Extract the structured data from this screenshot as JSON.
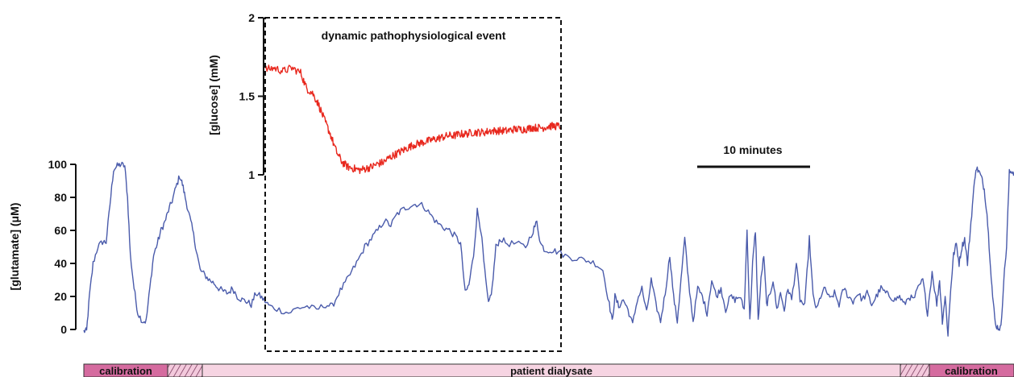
{
  "colors": {
    "glutamate": "#4a5bab",
    "glucose": "#e8281e",
    "calibration_band": "#d56b9f",
    "dialysate_band": "#f6d4e2",
    "hatch_band": "#c9629b",
    "box": "#111111"
  },
  "annotations": {
    "event_label": "dynamic pathophysiological event",
    "scale_bar_label": "10 minutes"
  },
  "band": {
    "calibration_left": "calibration",
    "dialysate": "patient dialysate",
    "calibration_right": "calibration"
  },
  "chart_data": [
    {
      "type": "line",
      "name": "glutamate",
      "ylabel": "[glutamate] (μM)",
      "ylim": [
        0,
        100
      ],
      "yticks": [
        0,
        20,
        40,
        60,
        80,
        100
      ],
      "xlim": [
        0,
        100
      ],
      "x_unit": "relative time",
      "points": [
        [
          0,
          -1
        ],
        [
          0.3,
          -1
        ],
        [
          0.6,
          20
        ],
        [
          1,
          40
        ],
        [
          1.5,
          50
        ],
        [
          2,
          53
        ],
        [
          2.4,
          53
        ],
        [
          2.8,
          75
        ],
        [
          3.2,
          97
        ],
        [
          3.6,
          99
        ],
        [
          4,
          100
        ],
        [
          4.4,
          99
        ],
        [
          4.7,
          80
        ],
        [
          5,
          45
        ],
        [
          5.4,
          25
        ],
        [
          5.8,
          10
        ],
        [
          6.3,
          5
        ],
        [
          6.7,
          5
        ],
        [
          7.1,
          25
        ],
        [
          7.5,
          45
        ],
        [
          7.9,
          52
        ],
        [
          8.3,
          60
        ],
        [
          8.7,
          65
        ],
        [
          9.1,
          72
        ],
        [
          9.5,
          78
        ],
        [
          9.9,
          86
        ],
        [
          10.3,
          93
        ],
        [
          10.6,
          88
        ],
        [
          10.9,
          80
        ],
        [
          11.3,
          70
        ],
        [
          11.7,
          60
        ],
        [
          12.1,
          48
        ],
        [
          12.5,
          36
        ],
        [
          13,
          33
        ],
        [
          13.5,
          30
        ],
        [
          14,
          28
        ],
        [
          14.5,
          25
        ],
        [
          15,
          23
        ],
        [
          15.5,
          22
        ],
        [
          16,
          25
        ],
        [
          16.5,
          20
        ],
        [
          17,
          18
        ],
        [
          17.5,
          17
        ],
        [
          18,
          15
        ],
        [
          18.5,
          22
        ],
        [
          19,
          20
        ],
        [
          19.5,
          17
        ],
        [
          20,
          14
        ],
        [
          21,
          12
        ],
        [
          22,
          10
        ],
        [
          23,
          13
        ],
        [
          24,
          14
        ],
        [
          25,
          12
        ],
        [
          26,
          15
        ],
        [
          26.7,
          14
        ],
        [
          27.4,
          22
        ],
        [
          28.1,
          28
        ],
        [
          28.8,
          35
        ],
        [
          29.5,
          42
        ],
        [
          30.2,
          50
        ],
        [
          30.9,
          55
        ],
        [
          31.6,
          60
        ],
        [
          32.3,
          66
        ],
        [
          33,
          63
        ],
        [
          33.7,
          70
        ],
        [
          34.4,
          73
        ],
        [
          35.1,
          75
        ],
        [
          35.8,
          76
        ],
        [
          36.5,
          75
        ],
        [
          37.2,
          70
        ],
        [
          37.9,
          65
        ],
        [
          38.6,
          62
        ],
        [
          39.3,
          60
        ],
        [
          40,
          56
        ],
        [
          40.5,
          52
        ],
        [
          41,
          22
        ],
        [
          41.4,
          27
        ],
        [
          41.9,
          45
        ],
        [
          42.3,
          72
        ],
        [
          42.7,
          60
        ],
        [
          43.1,
          35
        ],
        [
          43.5,
          15
        ],
        [
          43.9,
          25
        ],
        [
          44.3,
          50
        ],
        [
          44.8,
          55
        ],
        [
          45.5,
          52
        ],
        [
          46.5,
          52
        ],
        [
          47.5,
          50
        ],
        [
          48.3,
          60
        ],
        [
          48.7,
          65
        ],
        [
          49.1,
          52
        ],
        [
          49.6,
          48
        ],
        [
          50.3,
          48
        ],
        [
          51,
          47
        ],
        [
          52,
          44
        ],
        [
          53,
          43
        ],
        [
          54,
          42
        ],
        [
          55,
          40
        ],
        [
          55.8,
          36
        ],
        [
          56.5,
          15
        ],
        [
          56.8,
          5
        ],
        [
          57.1,
          20
        ],
        [
          57.5,
          14
        ],
        [
          58,
          18
        ],
        [
          58.5,
          12
        ],
        [
          59,
          3
        ],
        [
          59.5,
          18
        ],
        [
          60,
          25
        ],
        [
          60.5,
          10
        ],
        [
          61,
          30
        ],
        [
          61.5,
          15
        ],
        [
          62,
          5
        ],
        [
          62.5,
          22
        ],
        [
          63,
          45
        ],
        [
          63.4,
          20
        ],
        [
          63.8,
          5
        ],
        [
          64.2,
          30
        ],
        [
          64.6,
          55
        ],
        [
          65,
          30
        ],
        [
          65.5,
          5
        ],
        [
          66,
          25
        ],
        [
          66.5,
          20
        ],
        [
          67,
          10
        ],
        [
          67.5,
          30
        ],
        [
          68,
          20
        ],
        [
          68.5,
          25
        ],
        [
          69,
          12
        ],
        [
          69.5,
          20
        ],
        [
          70,
          18
        ],
        [
          70.5,
          20
        ],
        [
          71,
          12
        ],
        [
          71.3,
          60
        ],
        [
          71.6,
          5
        ],
        [
          71.9,
          40
        ],
        [
          72.2,
          60
        ],
        [
          72.5,
          5
        ],
        [
          72.8,
          30
        ],
        [
          73.1,
          45
        ],
        [
          73.4,
          15
        ],
        [
          73.7,
          20
        ],
        [
          74.1,
          30
        ],
        [
          74.5,
          12
        ],
        [
          74.9,
          22
        ],
        [
          75.3,
          12
        ],
        [
          75.7,
          25
        ],
        [
          76.1,
          18
        ],
        [
          76.6,
          40
        ],
        [
          77,
          18
        ],
        [
          77.5,
          14
        ],
        [
          78,
          55
        ],
        [
          78.4,
          20
        ],
        [
          78.8,
          12
        ],
        [
          79.2,
          20
        ],
        [
          79.7,
          25
        ],
        [
          80.2,
          18
        ],
        [
          80.7,
          22
        ],
        [
          81.2,
          15
        ],
        [
          81.7,
          25
        ],
        [
          82.2,
          20
        ],
        [
          82.7,
          17
        ],
        [
          83.2,
          22
        ],
        [
          83.7,
          18
        ],
        [
          84.2,
          22
        ],
        [
          84.7,
          15
        ],
        [
          85.2,
          20
        ],
        [
          85.7,
          25
        ],
        [
          86.2,
          22
        ],
        [
          86.7,
          20
        ],
        [
          87.2,
          18
        ],
        [
          87.7,
          20
        ],
        [
          88.2,
          15
        ],
        [
          88.7,
          20
        ],
        [
          89.2,
          18
        ],
        [
          89.7,
          25
        ],
        [
          90.2,
          30
        ],
        [
          90.7,
          10
        ],
        [
          91.2,
          35
        ],
        [
          91.7,
          15
        ],
        [
          92,
          30
        ],
        [
          92.3,
          5
        ],
        [
          92.6,
          20
        ],
        [
          92.9,
          -3
        ],
        [
          93.2,
          25
        ],
        [
          93.5,
          45
        ],
        [
          93.8,
          52
        ],
        [
          94.1,
          40
        ],
        [
          94.4,
          50
        ],
        [
          94.7,
          55
        ],
        [
          95,
          40
        ],
        [
          95.3,
          60
        ],
        [
          95.6,
          80
        ],
        [
          95.9,
          98
        ],
        [
          96.2,
          96
        ],
        [
          96.5,
          92
        ],
        [
          96.8,
          85
        ],
        [
          97.1,
          70
        ],
        [
          97.4,
          45
        ],
        [
          97.7,
          20
        ],
        [
          98,
          3
        ],
        [
          98.3,
          1
        ],
        [
          98.6,
          1
        ],
        [
          98.9,
          30
        ],
        [
          99.2,
          50
        ],
        [
          99.5,
          95
        ],
        [
          99.8,
          96
        ],
        [
          100,
          95
        ]
      ]
    },
    {
      "type": "line",
      "name": "glucose",
      "ylabel": "[glucose] (mM)",
      "ylim": [
        1,
        2
      ],
      "yticks": [
        1,
        1.5,
        2
      ],
      "xlim": [
        0,
        100
      ],
      "x_unit": "relative time",
      "points": [
        [
          0,
          1.67
        ],
        [
          3,
          1.68
        ],
        [
          6,
          1.66
        ],
        [
          9,
          1.68
        ],
        [
          12,
          1.65
        ],
        [
          14,
          1.55
        ],
        [
          16,
          1.52
        ],
        [
          18,
          1.45
        ],
        [
          20,
          1.35
        ],
        [
          22,
          1.26
        ],
        [
          24,
          1.15
        ],
        [
          26,
          1.08
        ],
        [
          28,
          1.05
        ],
        [
          30,
          1.04
        ],
        [
          32,
          1.03
        ],
        [
          34,
          1.04
        ],
        [
          36,
          1.05
        ],
        [
          38,
          1.07
        ],
        [
          40,
          1.08
        ],
        [
          42,
          1.11
        ],
        [
          44,
          1.13
        ],
        [
          46,
          1.15
        ],
        [
          48,
          1.17
        ],
        [
          50,
          1.19
        ],
        [
          52,
          1.2
        ],
        [
          54,
          1.21
        ],
        [
          56,
          1.22
        ],
        [
          58,
          1.23
        ],
        [
          60,
          1.24
        ],
        [
          62,
          1.25
        ],
        [
          64,
          1.25
        ],
        [
          66,
          1.26
        ],
        [
          68,
          1.26
        ],
        [
          70,
          1.27
        ],
        [
          72,
          1.27
        ],
        [
          74,
          1.27
        ],
        [
          76,
          1.28
        ],
        [
          78,
          1.28
        ],
        [
          80,
          1.28
        ],
        [
          82,
          1.28
        ],
        [
          84,
          1.29
        ],
        [
          86,
          1.29
        ],
        [
          88,
          1.29
        ],
        [
          90,
          1.3
        ],
        [
          92,
          1.3
        ],
        [
          94,
          1.3
        ],
        [
          96,
          1.31
        ],
        [
          98,
          1.31
        ],
        [
          100,
          1.31
        ]
      ]
    }
  ]
}
